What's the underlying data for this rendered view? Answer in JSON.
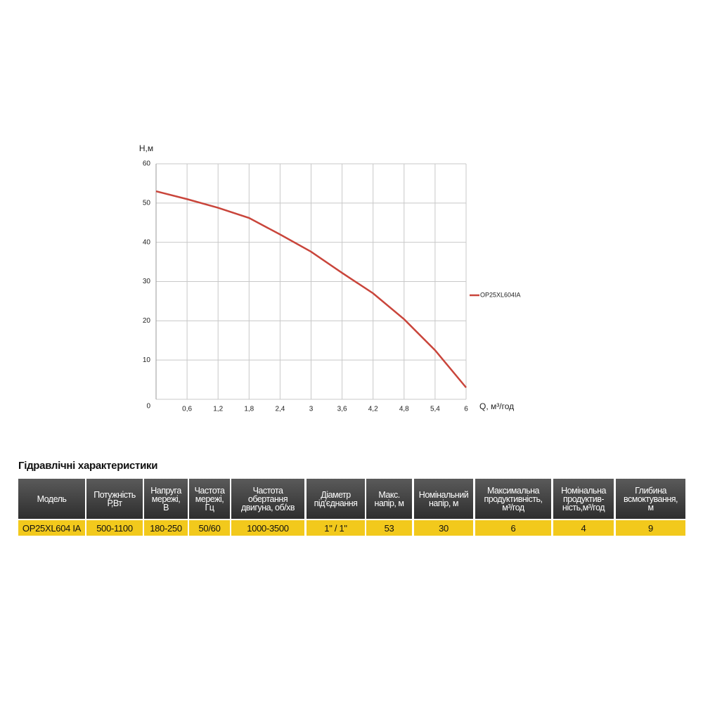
{
  "chart_data": {
    "type": "line",
    "y_label": "Н,м",
    "x_label": "Q, м³/год",
    "x": [
      0,
      0.6,
      1.2,
      1.8,
      2.4,
      3,
      3.6,
      4.2,
      4.8,
      5.4,
      6
    ],
    "series": [
      {
        "name": "OP25XL604IA",
        "color": "#c9453b",
        "values": [
          53,
          51,
          48.8,
          46.2,
          42,
          37.6,
          32.2,
          27,
          20.4,
          12.5,
          3
        ]
      }
    ],
    "xlim": [
      0,
      6
    ],
    "xticks": [
      {
        "value": 0.6,
        "label": "0,6"
      },
      {
        "value": 1.2,
        "label": "1,2"
      },
      {
        "value": 1.8,
        "label": "1,8"
      },
      {
        "value": 2.4,
        "label": "2,4"
      },
      3,
      {
        "value": 3.6,
        "label": "3,6"
      },
      {
        "value": 4.2,
        "label": "4,2"
      },
      {
        "value": 4.8,
        "label": "4,8"
      },
      {
        "value": 5.4,
        "label": "5,4"
      },
      6
    ],
    "ylim": [
      0,
      60
    ],
    "yticks": [
      0,
      10,
      20,
      30,
      40,
      50,
      60
    ],
    "grid": true,
    "legend": "right"
  },
  "table": {
    "title": "Гідравлічні характеристики",
    "header": [
      "Модель",
      "Потужність\nР,Вт",
      "Напруга\nмережі,\nВ",
      "Частота\nмережі,\nГц",
      "Частота\nобертання\nдвигуна, об/хв",
      "Діаметр\nпід'єднання",
      "Макс.\nнапір, м",
      "Номінальний\nнапір, м",
      "Максимальна\nпродуктивність,\nм³/год",
      "Номінальна\nпродуктив-\nність,м³/год",
      "Глибина\nвсмоктування,\nм"
    ],
    "rows": [
      [
        "OP25XL604 IA",
        "500-1100",
        "180-250",
        "50/60",
        "1000-3500",
        "1\" / 1\"",
        "53",
        "30",
        "6",
        "4",
        "9"
      ]
    ]
  }
}
